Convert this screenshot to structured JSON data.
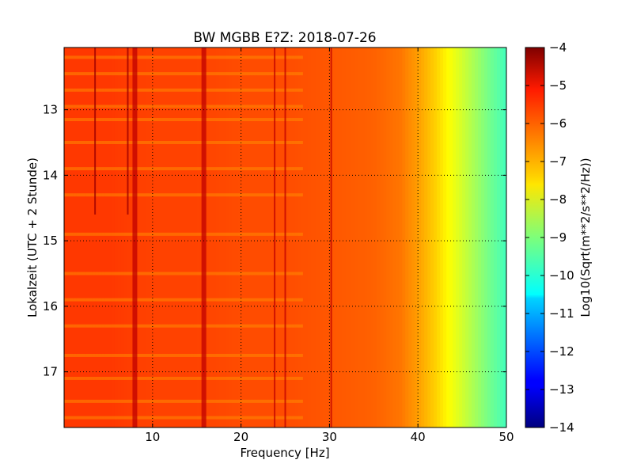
{
  "chart_data": {
    "type": "heatmap",
    "title": "BW MGBB E?Z: 2018-07-26",
    "xlabel": "Frequency [Hz]",
    "ylabel": "Lokalzeit (UTC + 2 Stunde)",
    "xlim": [
      0,
      50
    ],
    "ylim": [
      17.85,
      12.05
    ],
    "y_inverted": true,
    "x_ticks": [
      10,
      20,
      30,
      40,
      50
    ],
    "x_tick_labels": [
      "10",
      "20",
      "30",
      "40",
      "50"
    ],
    "y_ticks": [
      13,
      14,
      15,
      16,
      17
    ],
    "y_tick_labels": [
      "13",
      "14",
      "15",
      "16",
      "17"
    ],
    "grid": true,
    "colormap": "jet",
    "colorbar": {
      "label": "Log10(Sqrt(m**2/s**2/Hz))",
      "range": [
        -14,
        -4
      ],
      "ticks": [
        -4,
        -5,
        -6,
        -7,
        -8,
        -9,
        -10,
        -11,
        -12,
        -13,
        -14
      ],
      "tick_labels": [
        "−4",
        "−5",
        "−6",
        "−7",
        "−8",
        "−9",
        "−10",
        "−11",
        "−12",
        "−13",
        "−14"
      ]
    },
    "spectrum_profile": {
      "frequency_hz": [
        0,
        5,
        10,
        15,
        20,
        25,
        30,
        35,
        38,
        40,
        42,
        44,
        46,
        48,
        50
      ],
      "level": [
        -5.8,
        -5.8,
        -5.9,
        -5.9,
        -6.0,
        -6.0,
        -6.1,
        -6.2,
        -6.4,
        -6.8,
        -7.3,
        -7.9,
        -8.5,
        -9.1,
        -9.6
      ]
    },
    "persistent_lines_hz": [
      8.0,
      15.8,
      23.8,
      25.0,
      30.2
    ],
    "intermittent_lines_hz": [
      3.5,
      7.2
    ],
    "broadband_events_h": [
      12.2,
      12.45,
      12.7,
      12.95,
      13.15,
      13.5,
      13.9,
      14.3,
      14.9,
      15.5,
      15.9,
      16.3,
      16.75,
      17.1,
      17.45,
      17.7
    ]
  }
}
